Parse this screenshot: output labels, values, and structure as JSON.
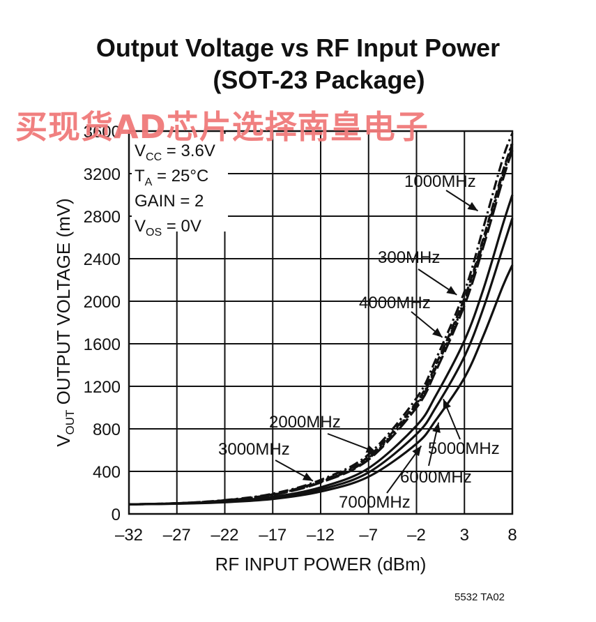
{
  "chart_data": {
    "type": "line",
    "title": "Output Voltage vs RF Input Power",
    "subtitle": "(SOT-23 Package)",
    "xlabel": "RF INPUT POWER (dBm)",
    "ylabel_main": "V",
    "ylabel_sub": "OUT",
    "ylabel_rest": " OUTPUT VOLTAGE (mV)",
    "xlim": [
      -32,
      8
    ],
    "ylim": [
      0,
      3600
    ],
    "xticks": [
      -32,
      -27,
      -22,
      -17,
      -12,
      -7,
      -2,
      3,
      8
    ],
    "xtick_labels": [
      "–32",
      "–27",
      "–22",
      "–17",
      "–12",
      "–7",
      "–2",
      "3",
      "8"
    ],
    "yticks": [
      0,
      400,
      800,
      1200,
      1600,
      2000,
      2400,
      2800,
      3200,
      3600
    ],
    "ytick_labels": [
      "0",
      "400",
      "800",
      "1200",
      "1600",
      "2000",
      "2400",
      "2800",
      "3200",
      "3600"
    ],
    "grid": true,
    "conditions": [
      {
        "main": "V",
        "sub": "CC",
        "rest": " = 3.6V"
      },
      {
        "main": "T",
        "sub": "A",
        "rest": " = 25°C"
      },
      {
        "main": "GAIN = 2",
        "sub": "",
        "rest": ""
      },
      {
        "main": "V",
        "sub": "OS",
        "rest": " = 0V"
      }
    ],
    "series": [
      {
        "name": "300MHz",
        "style": "dashdot",
        "x": [
          -32,
          -27,
          -22,
          -17,
          -12,
          -7,
          -2,
          0,
          3,
          5,
          7,
          8
        ],
        "y": [
          90,
          100,
          130,
          190,
          320,
          560,
          1090,
          1450,
          2090,
          2700,
          3340,
          3580
        ]
      },
      {
        "name": "1000MHz",
        "style": "dashed",
        "x": [
          -32,
          -27,
          -22,
          -17,
          -12,
          -7,
          -2,
          0,
          3,
          5,
          7,
          8
        ],
        "y": [
          90,
          100,
          128,
          185,
          310,
          540,
          1050,
          1400,
          2030,
          2600,
          3220,
          3480
        ]
      },
      {
        "name": "2000MHz",
        "style": "dashdotdot",
        "x": [
          -32,
          -27,
          -22,
          -17,
          -12,
          -7,
          -2,
          0,
          3,
          5,
          7,
          8
        ],
        "y": [
          90,
          100,
          126,
          180,
          300,
          520,
          1020,
          1370,
          1990,
          2560,
          3180,
          3450
        ]
      },
      {
        "name": "4000MHz",
        "style": "dotted",
        "x": [
          -32,
          -27,
          -22,
          -17,
          -12,
          -7,
          -2,
          0,
          3,
          5,
          7,
          8
        ],
        "y": [
          90,
          100,
          127,
          182,
          305,
          530,
          1035,
          1385,
          2010,
          2580,
          3200,
          3500
        ]
      },
      {
        "name": "3000MHz",
        "style": "dashed2",
        "x": [
          -32,
          -27,
          -22,
          -17,
          -12,
          -7,
          -2,
          0,
          3,
          5,
          7,
          8
        ],
        "y": [
          90,
          100,
          125,
          178,
          295,
          510,
          1000,
          1340,
          1960,
          2520,
          3140,
          3420
        ]
      },
      {
        "name": "5000MHz",
        "style": "solid",
        "x": [
          -32,
          -27,
          -22,
          -17,
          -12,
          -7,
          -2,
          0,
          3,
          5,
          7,
          8
        ],
        "y": [
          90,
          98,
          118,
          160,
          250,
          430,
          830,
          1110,
          1630,
          2120,
          2720,
          3000
        ]
      },
      {
        "name": "6000MHz",
        "style": "solid",
        "x": [
          -32,
          -27,
          -22,
          -17,
          -12,
          -7,
          -2,
          0,
          3,
          5,
          7,
          8
        ],
        "y": [
          90,
          97,
          114,
          150,
          230,
          390,
          750,
          1000,
          1480,
          1940,
          2500,
          2780
        ]
      },
      {
        "name": "7000MHz",
        "style": "solid",
        "x": [
          -32,
          -27,
          -22,
          -17,
          -12,
          -7,
          -2,
          0,
          3,
          5,
          7,
          8
        ],
        "y": [
          90,
          96,
          110,
          140,
          210,
          350,
          660,
          880,
          1280,
          1680,
          2140,
          2340
        ]
      }
    ],
    "annotations": [
      {
        "text": "1000MHz",
        "x": 4.4,
        "y": 2850
      },
      {
        "text": "300MHz",
        "x": 2.2,
        "y": 2060
      },
      {
        "text": "4000MHz",
        "x": 0.7,
        "y": 1660
      },
      {
        "text": "2000MHz",
        "x": -6.2,
        "y": 580
      },
      {
        "text": "3000MHz",
        "x": -12.8,
        "y": 310
      },
      {
        "text": "5000MHz",
        "x": 0.8,
        "y": 1080
      },
      {
        "text": "6000MHz",
        "x": 0.3,
        "y": 860
      },
      {
        "text": "7000MHz",
        "x": -1.5,
        "y": 640
      }
    ]
  },
  "watermark": "买现货AD芯片选择南皇电子",
  "footnote": "5532 TA02"
}
